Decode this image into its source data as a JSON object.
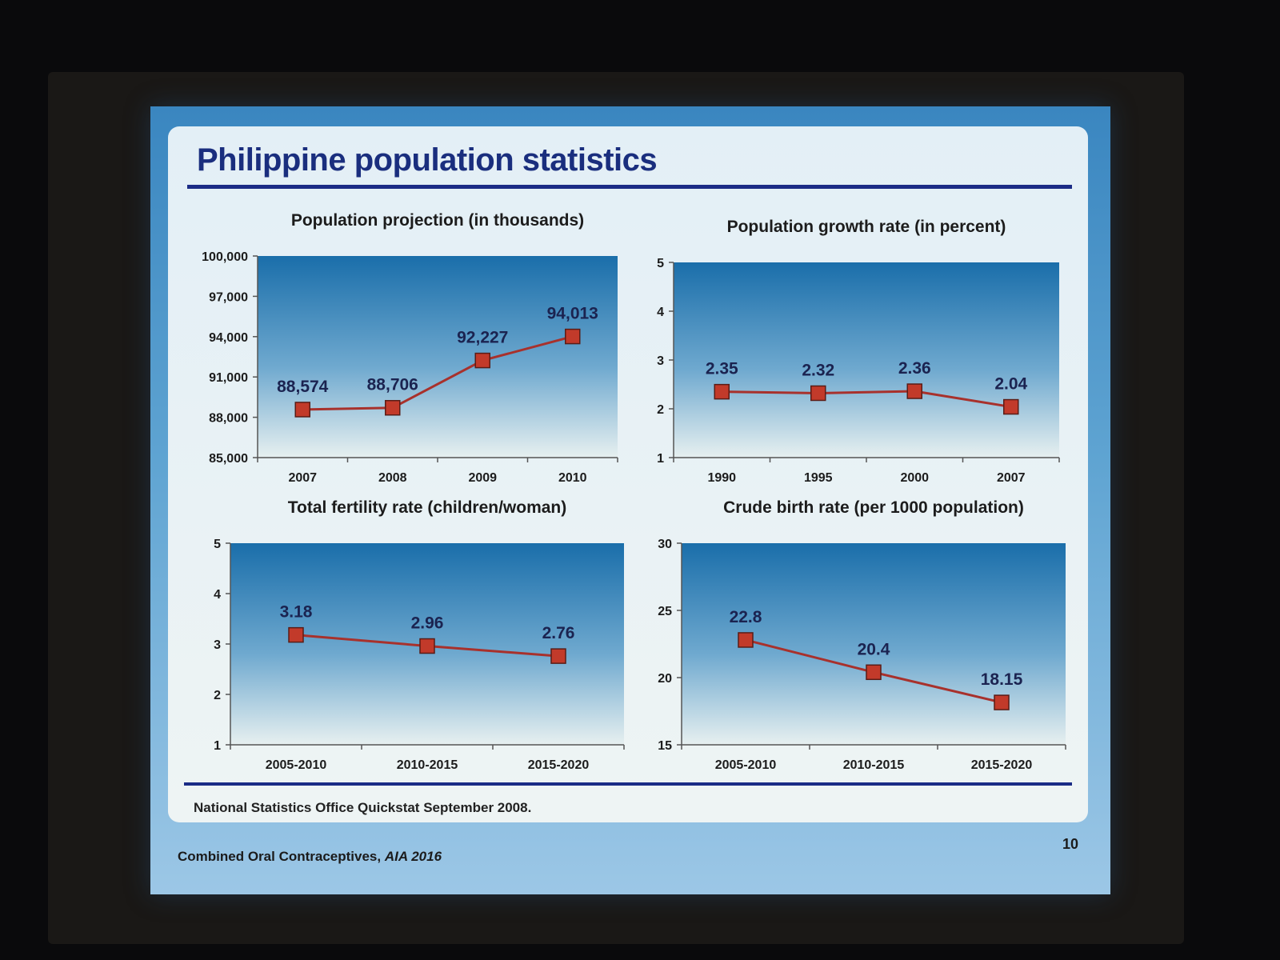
{
  "slide": {
    "title": "Philippine population statistics",
    "source_note": "National Statistics Office Quickstat September 2008.",
    "footer_text": "Combined Oral Contraceptives,",
    "footer_italic": "AIA 2016",
    "page_number": "10"
  },
  "colors": {
    "title_blue": "#1b2c86",
    "line_red": "#a8312c",
    "marker_red": "#c23a2a",
    "plot_top": "#1a6eaa",
    "plot_bottom": "#e7f0f0"
  },
  "chart_data": [
    {
      "type": "line",
      "title": "Population projection (in thousands)",
      "categories": [
        "2007",
        "2008",
        "2009",
        "2010"
      ],
      "values": [
        88574,
        88706,
        92227,
        94013
      ],
      "value_labels": [
        "88,574",
        "88,706",
        "92,227",
        "94,013"
      ],
      "ylim": [
        85000,
        100000
      ],
      "yticks": [
        85000,
        88000,
        91000,
        94000,
        97000,
        100000
      ],
      "ytick_labels": [
        "85,000",
        "88,000",
        "91,000",
        "94,000",
        "97,000",
        "100,000"
      ],
      "grid": false
    },
    {
      "type": "line",
      "title": "Population growth rate (in percent)",
      "categories": [
        "1990",
        "1995",
        "2000",
        "2007"
      ],
      "values": [
        2.35,
        2.32,
        2.36,
        2.04
      ],
      "value_labels": [
        "2.35",
        "2.32",
        "2.36",
        "2.04"
      ],
      "ylim": [
        1,
        5
      ],
      "yticks": [
        1,
        2,
        3,
        4,
        5
      ],
      "ytick_labels": [
        "1",
        "2",
        "3",
        "4",
        "5"
      ],
      "grid": false
    },
    {
      "type": "line",
      "title": "Total fertility rate (children/woman)",
      "categories": [
        "2005-2010",
        "2010-2015",
        "2015-2020"
      ],
      "values": [
        3.18,
        2.96,
        2.76
      ],
      "value_labels": [
        "3.18",
        "2.96",
        "2.76"
      ],
      "ylim": [
        1,
        5
      ],
      "yticks": [
        1,
        2,
        3,
        4,
        5
      ],
      "ytick_labels": [
        "1",
        "2",
        "3",
        "4",
        "5"
      ],
      "grid": false
    },
    {
      "type": "line",
      "title": "Crude birth rate (per 1000 population)",
      "categories": [
        "2005-2010",
        "2010-2015",
        "2015-2020"
      ],
      "values": [
        22.8,
        20.4,
        18.15
      ],
      "value_labels": [
        "22.8",
        "20.4",
        "18.15"
      ],
      "ylim": [
        15,
        30
      ],
      "yticks": [
        15,
        20,
        25,
        30
      ],
      "ytick_labels": [
        "15",
        "20",
        "25",
        "30"
      ],
      "grid": false
    }
  ]
}
